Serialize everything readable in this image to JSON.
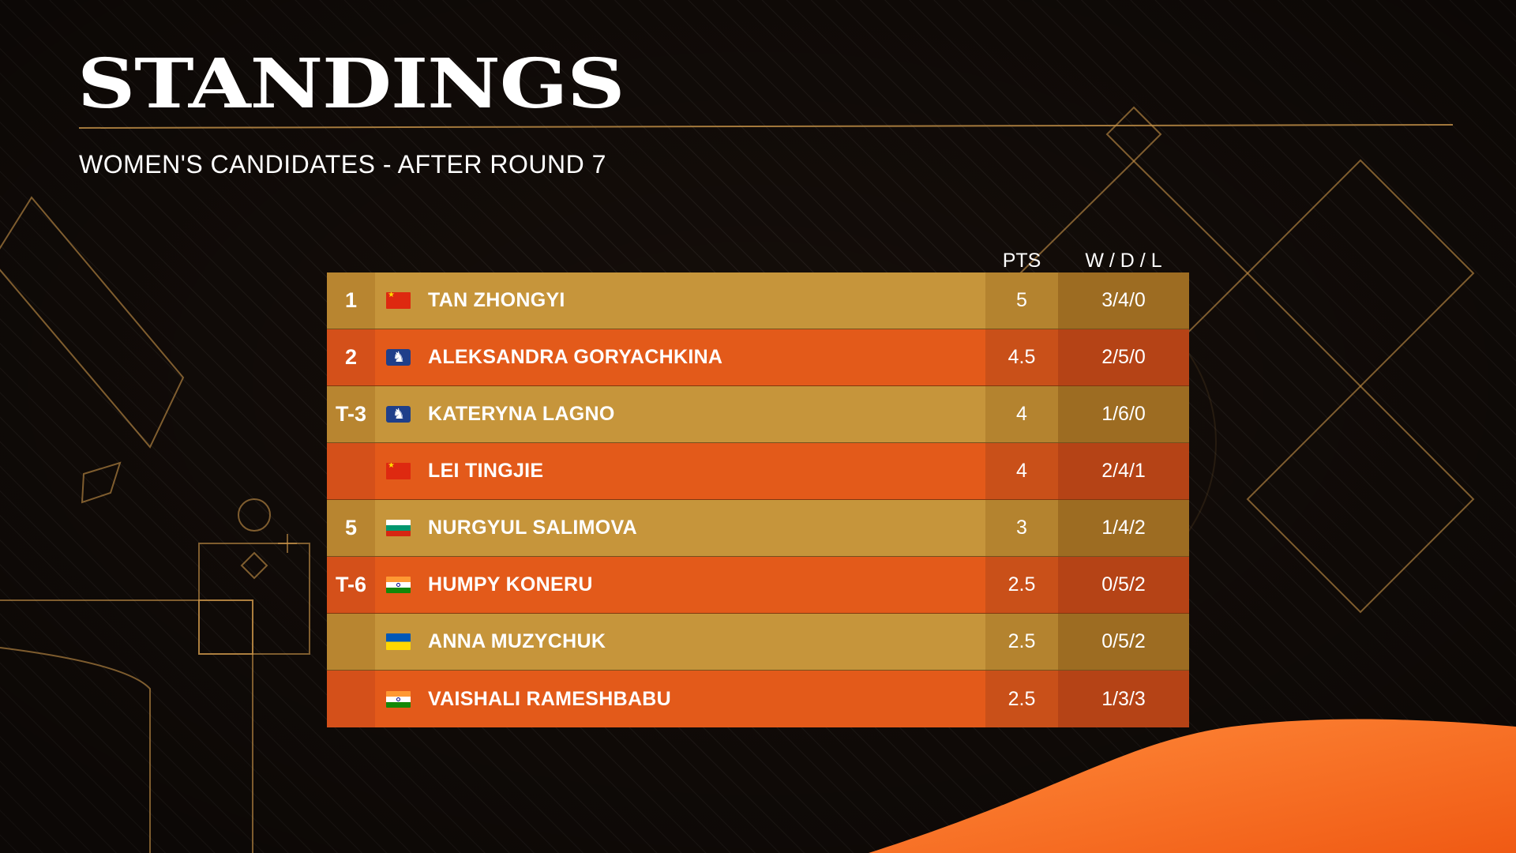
{
  "title": "STANDINGS",
  "subtitle": "WOMEN'S CANDIDATES - AFTER ROUND 7",
  "columns": {
    "pts": "PTS",
    "wdl": "W / D / L"
  },
  "colors": {
    "gold_row": "#c6953b",
    "orange_row": "#e35a1a",
    "accent": "#f07a2a"
  },
  "rows": [
    {
      "rank": "1",
      "flag": "china-flag-icon",
      "name": "TAN ZHONGYI",
      "pts": "5",
      "wdl": "3/4/0"
    },
    {
      "rank": "2",
      "flag": "fide-flag-icon",
      "name": "ALEKSANDRA GORYACHKINA",
      "pts": "4.5",
      "wdl": "2/5/0"
    },
    {
      "rank": "T-3",
      "flag": "fide-flag-icon",
      "name": "KATERYNA LAGNO",
      "pts": "4",
      "wdl": "1/6/0"
    },
    {
      "rank": "",
      "flag": "china-flag-icon",
      "name": "LEI TINGJIE",
      "pts": "4",
      "wdl": "2/4/1"
    },
    {
      "rank": "5",
      "flag": "bulgaria-flag-icon",
      "name": "NURGYUL SALIMOVA",
      "pts": "3",
      "wdl": "1/4/2"
    },
    {
      "rank": "T-6",
      "flag": "india-flag-icon",
      "name": "HUMPY KONERU",
      "pts": "2.5",
      "wdl": "0/5/2"
    },
    {
      "rank": "",
      "flag": "ukraine-flag-icon",
      "name": "ANNA MUZYCHUK",
      "pts": "2.5",
      "wdl": "0/5/2"
    },
    {
      "rank": "",
      "flag": "india-flag-icon",
      "name": "VAISHALI RAMESHBABU",
      "pts": "2.5",
      "wdl": "1/3/3"
    }
  ]
}
